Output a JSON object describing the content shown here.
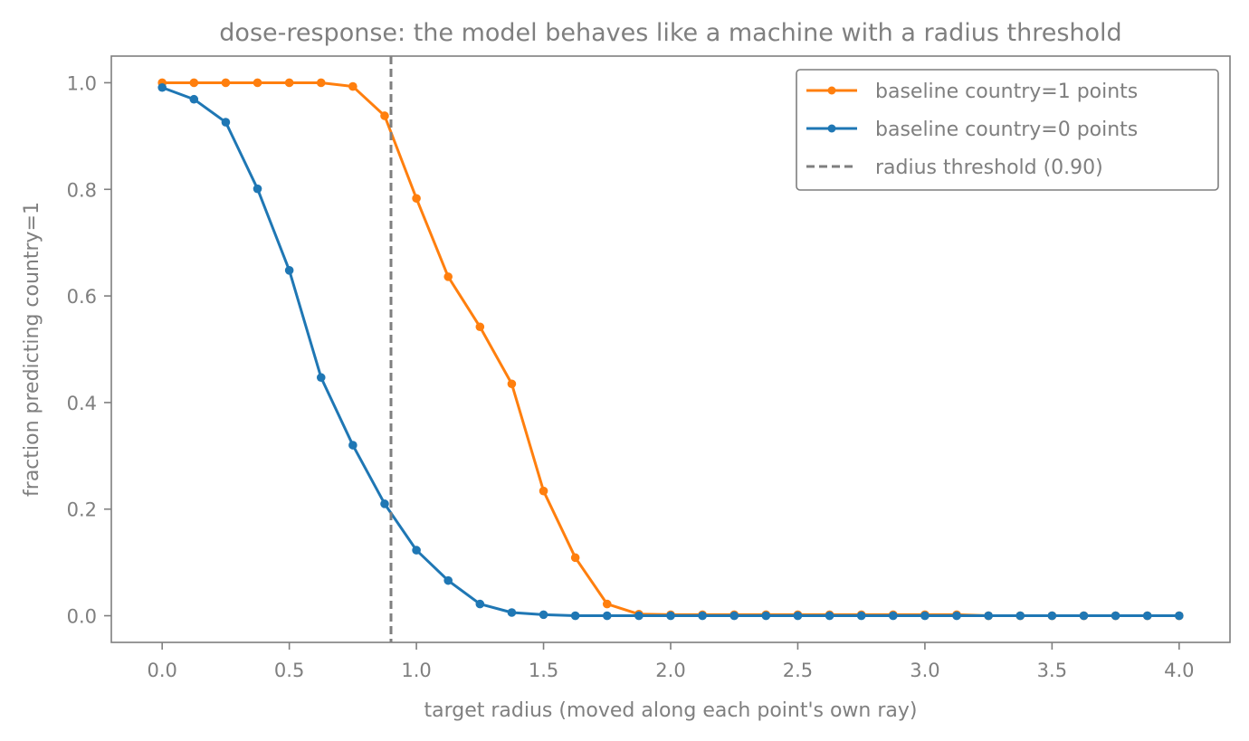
{
  "chart_data": {
    "type": "line",
    "title": "dose-response: the model behaves like a machine with a radius threshold",
    "xlabel": "target radius (moved along each point's own ray)",
    "ylabel": "fraction predicting country=1",
    "xlim": [
      -0.2,
      4.2
    ],
    "ylim": [
      -0.05,
      1.05
    ],
    "xticks": [
      0.0,
      0.5,
      1.0,
      1.5,
      2.0,
      2.5,
      3.0,
      3.5,
      4.0
    ],
    "xtick_labels": [
      "0.0",
      "0.5",
      "1.0",
      "1.5",
      "2.0",
      "2.5",
      "3.0",
      "3.5",
      "4.0"
    ],
    "yticks": [
      0.0,
      0.2,
      0.4,
      0.6,
      0.8,
      1.0
    ],
    "ytick_labels": [
      "0.0",
      "0.2",
      "0.4",
      "0.6",
      "0.8",
      "1.0"
    ],
    "grid": false,
    "legend_position": "upper right",
    "x": [
      0.0,
      0.125,
      0.25,
      0.375,
      0.5,
      0.625,
      0.75,
      0.875,
      1.0,
      1.125,
      1.25,
      1.375,
      1.5,
      1.625,
      1.75,
      1.875,
      2.0,
      2.125,
      2.25,
      2.375,
      2.5,
      2.625,
      2.75,
      2.875,
      3.0,
      3.125,
      3.25,
      3.375,
      3.5,
      3.625,
      3.75,
      3.875,
      4.0
    ],
    "series": [
      {
        "name": "baseline country=1 points",
        "color": "#ff7f0e",
        "marker": "circle",
        "values": [
          1.0,
          1.0,
          1.0,
          1.0,
          1.0,
          1.0,
          0.993,
          0.938,
          0.783,
          0.636,
          0.542,
          0.435,
          0.234,
          0.109,
          0.022,
          0.003,
          0.002,
          0.002,
          0.002,
          0.002,
          0.002,
          0.002,
          0.002,
          0.002,
          0.002,
          0.002,
          0.0,
          0.0,
          0.0,
          0.0,
          0.0,
          0.0,
          0.0
        ]
      },
      {
        "name": "baseline country=0 points",
        "color": "#1f77b4",
        "marker": "circle",
        "values": [
          0.991,
          0.969,
          0.926,
          0.801,
          0.648,
          0.447,
          0.32,
          0.21,
          0.123,
          0.066,
          0.022,
          0.006,
          0.002,
          0.0,
          0.0,
          0.0,
          0.0,
          0.0,
          0.0,
          0.0,
          0.0,
          0.0,
          0.0,
          0.0,
          0.0,
          0.0,
          0.0,
          0.0,
          0.0,
          0.0,
          0.0,
          0.0,
          0.0
        ]
      }
    ],
    "annotations": [
      {
        "type": "vline",
        "x": 0.9,
        "name": "radius threshold (0.90)",
        "color": "#7f7f7f",
        "style": "dashed"
      }
    ]
  }
}
